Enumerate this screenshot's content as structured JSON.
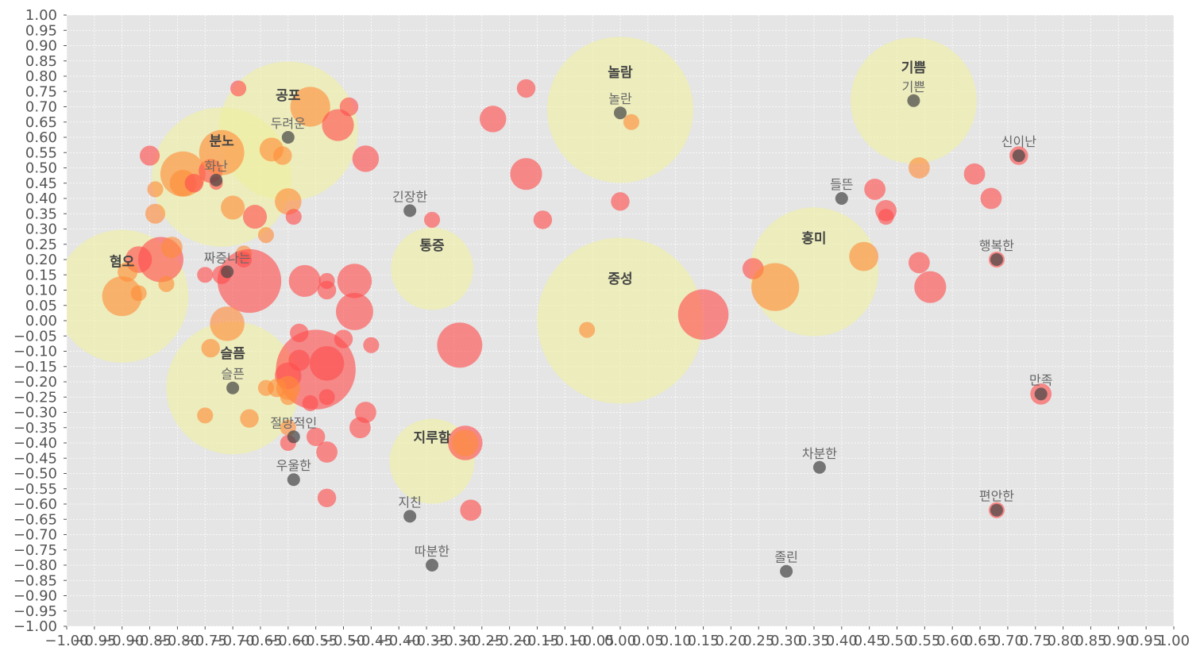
{
  "chart_data": {
    "type": "scatter",
    "title": "",
    "xlabel": "",
    "ylabel": "",
    "xlim": [
      -1.0,
      1.0
    ],
    "ylim": [
      -1.0,
      1.0
    ],
    "tick_step": 0.05,
    "grid": true,
    "colors": {
      "background": "#e5e5e5",
      "grid": "#ffffff",
      "category_bubble": "#f0f0a0",
      "emotion_red": "#ff4d4d",
      "emotion_orange": "#ff8c3a",
      "word_dot": "#444444"
    },
    "categories": [
      {
        "label": "혐오",
        "x": -0.9,
        "y": 0.08,
        "size": 1.0
      },
      {
        "label": "분노",
        "x": -0.72,
        "y": 0.47,
        "size": 1.05
      },
      {
        "label": "공포",
        "x": -0.6,
        "y": 0.62,
        "size": 1.05
      },
      {
        "label": "놀람",
        "x": 0.0,
        "y": 0.69,
        "size": 1.1
      },
      {
        "label": "기쁨",
        "x": 0.53,
        "y": 0.72,
        "size": 0.95
      },
      {
        "label": "통증",
        "x": -0.34,
        "y": 0.17,
        "size": 0.62
      },
      {
        "label": "흥미",
        "x": 0.35,
        "y": 0.16,
        "size": 0.97
      },
      {
        "label": "중성",
        "x": 0.0,
        "y": 0.0,
        "size": 1.25
      },
      {
        "label": "슬픔",
        "x": -0.7,
        "y": -0.22,
        "size": 1.0
      },
      {
        "label": "지루함",
        "x": -0.34,
        "y": -0.46,
        "size": 0.64
      }
    ],
    "words": [
      {
        "label": "기쁜",
        "x": 0.53,
        "y": 0.72
      },
      {
        "label": "놀란",
        "x": 0.0,
        "y": 0.68
      },
      {
        "label": "신이난",
        "x": 0.72,
        "y": 0.54
      },
      {
        "label": "두려운",
        "x": -0.6,
        "y": 0.6
      },
      {
        "label": "화난",
        "x": -0.73,
        "y": 0.46
      },
      {
        "label": "들뜬",
        "x": 0.4,
        "y": 0.4
      },
      {
        "label": "긴장한",
        "x": -0.38,
        "y": 0.36
      },
      {
        "label": "행복한",
        "x": 0.68,
        "y": 0.2
      },
      {
        "label": "짜증나는",
        "x": -0.71,
        "y": 0.16
      },
      {
        "label": "슬픈",
        "x": -0.7,
        "y": -0.22
      },
      {
        "label": "만족",
        "x": 0.76,
        "y": -0.24
      },
      {
        "label": "절망적인",
        "x": -0.59,
        "y": -0.38
      },
      {
        "label": "차분한",
        "x": 0.36,
        "y": -0.48
      },
      {
        "label": "우울한",
        "x": -0.59,
        "y": -0.52
      },
      {
        "label": "편안한",
        "x": 0.68,
        "y": -0.62
      },
      {
        "label": "지친",
        "x": -0.38,
        "y": -0.64
      },
      {
        "label": "따분한",
        "x": -0.34,
        "y": -0.8
      },
      {
        "label": "졸린",
        "x": 0.3,
        "y": -0.82
      }
    ],
    "points": [
      {
        "x": -0.9,
        "y": 0.08,
        "r": 0.3,
        "c": "orange"
      },
      {
        "x": -0.87,
        "y": 0.2,
        "r": 0.2,
        "c": "red"
      },
      {
        "x": -0.89,
        "y": 0.16,
        "r": 0.15,
        "c": "orange"
      },
      {
        "x": -0.87,
        "y": 0.09,
        "r": 0.12,
        "c": "orange"
      },
      {
        "x": -0.83,
        "y": 0.2,
        "r": 0.34,
        "c": "red"
      },
      {
        "x": -0.81,
        "y": 0.24,
        "r": 0.16,
        "c": "orange"
      },
      {
        "x": -0.82,
        "y": 0.12,
        "r": 0.12,
        "c": "orange"
      },
      {
        "x": -0.85,
        "y": 0.54,
        "r": 0.15,
        "c": "red"
      },
      {
        "x": -0.84,
        "y": 0.43,
        "r": 0.12,
        "c": "orange"
      },
      {
        "x": -0.84,
        "y": 0.35,
        "r": 0.15,
        "c": "orange"
      },
      {
        "x": -0.79,
        "y": 0.48,
        "r": 0.34,
        "c": "orange"
      },
      {
        "x": -0.79,
        "y": 0.45,
        "r": 0.2,
        "c": "orange"
      },
      {
        "x": -0.77,
        "y": 0.45,
        "r": 0.14,
        "c": "red"
      },
      {
        "x": -0.74,
        "y": 0.49,
        "r": 0.18,
        "c": "red"
      },
      {
        "x": -0.73,
        "y": 0.45,
        "r": 0.1,
        "c": "red"
      },
      {
        "x": -0.72,
        "y": 0.55,
        "r": 0.34,
        "c": "orange"
      },
      {
        "x": -0.69,
        "y": 0.76,
        "r": 0.12,
        "c": "red"
      },
      {
        "x": -0.7,
        "y": 0.37,
        "r": 0.18,
        "c": "orange"
      },
      {
        "x": -0.66,
        "y": 0.34,
        "r": 0.18,
        "c": "red"
      },
      {
        "x": -0.64,
        "y": 0.28,
        "r": 0.12,
        "c": "orange"
      },
      {
        "x": -0.63,
        "y": 0.56,
        "r": 0.18,
        "c": "orange"
      },
      {
        "x": -0.61,
        "y": 0.54,
        "r": 0.14,
        "c": "orange"
      },
      {
        "x": -0.6,
        "y": 0.39,
        "r": 0.2,
        "c": "orange"
      },
      {
        "x": -0.59,
        "y": 0.34,
        "r": 0.12,
        "c": "red"
      },
      {
        "x": -0.56,
        "y": 0.7,
        "r": 0.3,
        "c": "orange"
      },
      {
        "x": -0.51,
        "y": 0.64,
        "r": 0.24,
        "c": "red"
      },
      {
        "x": -0.49,
        "y": 0.7,
        "r": 0.14,
        "c": "red"
      },
      {
        "x": -0.46,
        "y": 0.53,
        "r": 0.2,
        "c": "red"
      },
      {
        "x": -0.68,
        "y": 0.22,
        "r": 0.12,
        "c": "orange"
      },
      {
        "x": -0.68,
        "y": 0.2,
        "r": 0.12,
        "c": "red"
      },
      {
        "x": -0.67,
        "y": 0.13,
        "r": 0.48,
        "c": "red"
      },
      {
        "x": -0.75,
        "y": 0.15,
        "r": 0.12,
        "c": "red"
      },
      {
        "x": -0.72,
        "y": 0.15,
        "r": 0.14,
        "c": "red"
      },
      {
        "x": -0.71,
        "y": -0.01,
        "r": 0.26,
        "c": "orange"
      },
      {
        "x": -0.74,
        "y": -0.09,
        "r": 0.14,
        "c": "orange"
      },
      {
        "x": -0.57,
        "y": 0.13,
        "r": 0.24,
        "c": "red"
      },
      {
        "x": -0.53,
        "y": 0.13,
        "r": 0.12,
        "c": "red"
      },
      {
        "x": -0.53,
        "y": 0.1,
        "r": 0.14,
        "c": "red"
      },
      {
        "x": -0.48,
        "y": 0.13,
        "r": 0.26,
        "c": "red"
      },
      {
        "x": -0.48,
        "y": 0.03,
        "r": 0.28,
        "c": "red"
      },
      {
        "x": -0.58,
        "y": -0.04,
        "r": 0.14,
        "c": "red"
      },
      {
        "x": -0.5,
        "y": -0.06,
        "r": 0.14,
        "c": "red"
      },
      {
        "x": -0.45,
        "y": -0.08,
        "r": 0.12,
        "c": "red"
      },
      {
        "x": -0.55,
        "y": -0.16,
        "r": 0.6,
        "c": "red"
      },
      {
        "x": -0.53,
        "y": -0.14,
        "r": 0.26,
        "c": "red"
      },
      {
        "x": -0.58,
        "y": -0.13,
        "r": 0.16,
        "c": "red"
      },
      {
        "x": -0.6,
        "y": -0.18,
        "r": 0.2,
        "c": "red"
      },
      {
        "x": -0.6,
        "y": -0.22,
        "r": 0.18,
        "c": "orange"
      },
      {
        "x": -0.62,
        "y": -0.22,
        "r": 0.14,
        "c": "orange"
      },
      {
        "x": -0.64,
        "y": -0.22,
        "r": 0.12,
        "c": "orange"
      },
      {
        "x": -0.6,
        "y": -0.25,
        "r": 0.12,
        "c": "orange"
      },
      {
        "x": -0.56,
        "y": -0.27,
        "r": 0.12,
        "c": "red"
      },
      {
        "x": -0.53,
        "y": -0.25,
        "r": 0.12,
        "c": "red"
      },
      {
        "x": -0.75,
        "y": -0.31,
        "r": 0.12,
        "c": "orange"
      },
      {
        "x": -0.67,
        "y": -0.32,
        "r": 0.14,
        "c": "orange"
      },
      {
        "x": -0.6,
        "y": -0.35,
        "r": 0.12,
        "c": "orange"
      },
      {
        "x": -0.6,
        "y": -0.4,
        "r": 0.12,
        "c": "red"
      },
      {
        "x": -0.55,
        "y": -0.38,
        "r": 0.14,
        "c": "red"
      },
      {
        "x": -0.53,
        "y": -0.43,
        "r": 0.16,
        "c": "red"
      },
      {
        "x": -0.46,
        "y": -0.3,
        "r": 0.16,
        "c": "red"
      },
      {
        "x": -0.47,
        "y": -0.35,
        "r": 0.16,
        "c": "red"
      },
      {
        "x": -0.53,
        "y": -0.58,
        "r": 0.14,
        "c": "red"
      },
      {
        "x": -0.34,
        "y": 0.33,
        "r": 0.12,
        "c": "red"
      },
      {
        "x": -0.29,
        "y": -0.08,
        "r": 0.34,
        "c": "red"
      },
      {
        "x": -0.28,
        "y": -0.4,
        "r": 0.26,
        "c": "red"
      },
      {
        "x": -0.28,
        "y": -0.4,
        "r": 0.2,
        "c": "orange"
      },
      {
        "x": -0.27,
        "y": -0.62,
        "r": 0.16,
        "c": "red"
      },
      {
        "x": -0.23,
        "y": 0.66,
        "r": 0.2,
        "c": "red"
      },
      {
        "x": -0.17,
        "y": 0.76,
        "r": 0.14,
        "c": "red"
      },
      {
        "x": -0.17,
        "y": 0.48,
        "r": 0.24,
        "c": "red"
      },
      {
        "x": -0.14,
        "y": 0.33,
        "r": 0.14,
        "c": "red"
      },
      {
        "x": 0.0,
        "y": 0.39,
        "r": 0.14,
        "c": "red"
      },
      {
        "x": 0.02,
        "y": 0.65,
        "r": 0.12,
        "c": "orange"
      },
      {
        "x": -0.06,
        "y": -0.03,
        "r": 0.12,
        "c": "orange"
      },
      {
        "x": 0.15,
        "y": 0.02,
        "r": 0.38,
        "c": "red"
      },
      {
        "x": 0.24,
        "y": 0.17,
        "r": 0.16,
        "c": "red"
      },
      {
        "x": 0.28,
        "y": 0.11,
        "r": 0.36,
        "c": "orange"
      },
      {
        "x": 0.46,
        "y": 0.43,
        "r": 0.16,
        "c": "red"
      },
      {
        "x": 0.48,
        "y": 0.36,
        "r": 0.16,
        "c": "red"
      },
      {
        "x": 0.48,
        "y": 0.34,
        "r": 0.12,
        "c": "red"
      },
      {
        "x": 0.44,
        "y": 0.21,
        "r": 0.22,
        "c": "orange"
      },
      {
        "x": 0.54,
        "y": 0.5,
        "r": 0.16,
        "c": "orange"
      },
      {
        "x": 0.54,
        "y": 0.19,
        "r": 0.16,
        "c": "red"
      },
      {
        "x": 0.56,
        "y": 0.11,
        "r": 0.24,
        "c": "red"
      },
      {
        "x": 0.64,
        "y": 0.48,
        "r": 0.16,
        "c": "red"
      },
      {
        "x": 0.67,
        "y": 0.4,
        "r": 0.16,
        "c": "red"
      },
      {
        "x": 0.72,
        "y": 0.54,
        "r": 0.14,
        "c": "red"
      },
      {
        "x": 0.68,
        "y": 0.2,
        "r": 0.12,
        "c": "red"
      },
      {
        "x": 0.76,
        "y": -0.24,
        "r": 0.16,
        "c": "red"
      },
      {
        "x": 0.68,
        "y": -0.62,
        "r": 0.12,
        "c": "red"
      }
    ]
  }
}
